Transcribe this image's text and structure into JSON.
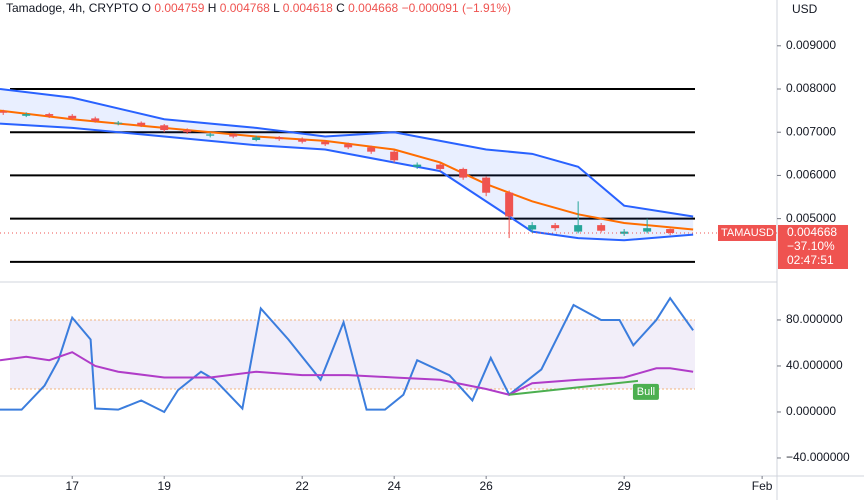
{
  "chart_data": [
    {
      "type": "candlestick",
      "header": {
        "symbol": "Tamadoge, 4h, CRYPTO",
        "fields": [
          {
            "label": "O",
            "value": "0.004759"
          },
          {
            "label": "H",
            "value": "0.004768"
          },
          {
            "label": "L",
            "value": "0.004618"
          },
          {
            "label": "C",
            "value": "0.004668"
          }
        ],
        "change": "−0.000091 (−1.91%)"
      },
      "currency": "USD",
      "x": [
        15.5,
        16,
        16.5,
        17,
        17.5,
        18,
        18.5,
        19,
        19.5,
        20,
        20.5,
        21,
        21.5,
        22,
        22.5,
        23,
        23.5,
        24,
        24.5,
        25,
        25.5,
        26,
        26.5,
        27,
        27.5,
        28,
        28.5,
        29,
        29.5,
        30
      ],
      "open": [
        0.00748,
        0.00738,
        0.00742,
        0.00738,
        0.00732,
        0.0072,
        0.00722,
        0.00716,
        0.00705,
        0.00692,
        0.00695,
        0.00682,
        0.00688,
        0.00684,
        0.00678,
        0.00672,
        0.00665,
        0.00655,
        0.0062,
        0.00625,
        0.00615,
        0.00595,
        0.0056,
        0.00475,
        0.00485,
        0.0047,
        0.00485,
        0.00465,
        0.0047,
        0.004759
      ],
      "high": [
        0.00752,
        0.00746,
        0.00745,
        0.00742,
        0.00736,
        0.00726,
        0.00725,
        0.00719,
        0.00709,
        0.00699,
        0.00698,
        0.00692,
        0.00691,
        0.00688,
        0.00682,
        0.00676,
        0.00669,
        0.00658,
        0.0063,
        0.00628,
        0.00618,
        0.00598,
        0.00565,
        0.00492,
        0.0049,
        0.0054,
        0.0049,
        0.00476,
        0.005,
        0.004768
      ],
      "low": [
        0.0074,
        0.00735,
        0.00733,
        0.00728,
        0.00722,
        0.00716,
        0.00712,
        0.007,
        0.00696,
        0.00688,
        0.00686,
        0.00679,
        0.0068,
        0.00674,
        0.00668,
        0.00661,
        0.0065,
        0.0063,
        0.00615,
        0.0061,
        0.0059,
        0.00552,
        0.00455,
        0.00468,
        0.00472,
        0.00466,
        0.00468,
        0.0046,
        0.00466,
        0.004618
      ],
      "close": [
        0.00745,
        0.00742,
        0.00738,
        0.00732,
        0.00726,
        0.00722,
        0.00716,
        0.00705,
        0.007,
        0.00695,
        0.0069,
        0.00688,
        0.00684,
        0.00678,
        0.00672,
        0.00665,
        0.00655,
        0.00635,
        0.00625,
        0.00615,
        0.00595,
        0.0056,
        0.00505,
        0.00485,
        0.00478,
        0.00485,
        0.00472,
        0.0047,
        0.00478,
        0.004668
      ],
      "up_color": "#26a69a",
      "down_color": "#ef5350",
      "bands": {
        "x": [
          15.43,
          17,
          19,
          21,
          22.5,
          24,
          25,
          26,
          27,
          28,
          29,
          30.5
        ],
        "upper": [
          0.008,
          0.0078,
          0.0073,
          0.0071,
          0.0069,
          0.007,
          0.0068,
          0.0066,
          0.0065,
          0.0062,
          0.0053,
          0.00505
        ],
        "basis": [
          0.0075,
          0.0073,
          0.0071,
          0.0069,
          0.0068,
          0.0066,
          0.0063,
          0.0058,
          0.0054,
          0.0051,
          0.0049,
          0.00475
        ],
        "lower": [
          0.0072,
          0.0071,
          0.0069,
          0.0067,
          0.0066,
          0.0063,
          0.0061,
          0.0054,
          0.0047,
          0.00455,
          0.0045,
          0.00463
        ],
        "color": "#2962ff",
        "basis_color": "#ff6d00"
      },
      "hlines": [
        0.008,
        0.007,
        0.006,
        0.005,
        0.004
      ],
      "hline_color": "#000000",
      "last": {
        "value": 0.004668,
        "symbol": "TAMAUSD",
        "change": "−37.10%",
        "countdown": "02:47:51"
      },
      "xlim": [
        15.43,
        32.28
      ],
      "ylim": [
        0.00358,
        0.01006
      ],
      "yticks": [
        {
          "value": 0.009,
          "label": "0.009000"
        },
        {
          "value": 0.008,
          "label": "0.008000"
        },
        {
          "value": 0.007,
          "label": "0.007000"
        },
        {
          "value": 0.006,
          "label": "0.006000"
        },
        {
          "value": 0.005,
          "label": "0.005000"
        }
      ],
      "xticks": [
        17,
        19,
        22,
        24,
        26,
        29,
        {
          "value": 32,
          "label": "Feb"
        }
      ]
    },
    {
      "type": "line",
      "series": [
        {
          "color": "#3b7ddd",
          "x": [
            15.43,
            15.9,
            16.4,
            16.7,
            17,
            17.4,
            17.5,
            18,
            18.5,
            19,
            19.3,
            19.8,
            20.1,
            20.7,
            21.1,
            21.7,
            22.4,
            22.9,
            23.4,
            23.8,
            24.2,
            24.5,
            25.2,
            25.7,
            26.1,
            26.5,
            27.2,
            27.9,
            28.5,
            28.9,
            29.2,
            29.7,
            30,
            30.5
          ],
          "values": [
            2,
            2,
            23,
            45,
            82,
            63,
            3,
            2,
            10,
            0,
            19,
            35,
            28,
            3,
            90,
            63,
            28,
            78,
            2,
            2,
            15,
            45,
            32,
            10,
            47,
            15,
            37,
            93,
            80,
            80,
            58,
            80,
            99,
            71
          ]
        },
        {
          "color": "#b03cc8",
          "x": [
            15.43,
            16,
            16.5,
            17,
            17.5,
            18,
            19,
            20,
            21,
            22,
            23,
            24,
            25,
            26,
            26.5,
            27,
            28,
            29,
            29.7,
            30,
            30.5
          ],
          "values": [
            45,
            48,
            45,
            52,
            40,
            35,
            30,
            30,
            35,
            32,
            32,
            30,
            28,
            20,
            15,
            25,
            28,
            30,
            38,
            38,
            35
          ]
        }
      ],
      "band": [
        20,
        80
      ],
      "annotation": {
        "text": "Bull",
        "x": [
          26.5,
          29.3
        ],
        "y": [
          15,
          27
        ],
        "color": "#4caf50"
      },
      "xlim": [
        15.43,
        32.28
      ],
      "ylim": [
        -54.8,
        110.4
      ],
      "yticks": [
        {
          "value": 80,
          "label": "80.000000"
        },
        {
          "value": 40,
          "label": "40.000000"
        },
        {
          "value": 0,
          "label": "0.000000"
        },
        {
          "value": -40,
          "label": "−40.000000"
        }
      ]
    }
  ]
}
